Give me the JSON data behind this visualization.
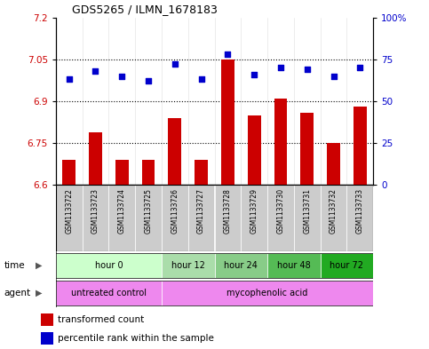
{
  "title": "GDS5265 / ILMN_1678183",
  "samples": [
    "GSM1133722",
    "GSM1133723",
    "GSM1133724",
    "GSM1133725",
    "GSM1133726",
    "GSM1133727",
    "GSM1133728",
    "GSM1133729",
    "GSM1133730",
    "GSM1133731",
    "GSM1133732",
    "GSM1133733"
  ],
  "transformed_count": [
    6.69,
    6.79,
    6.69,
    6.69,
    6.84,
    6.69,
    7.05,
    6.85,
    6.91,
    6.86,
    6.75,
    6.88
  ],
  "percentile_rank": [
    63,
    68,
    65,
    62,
    72,
    63,
    78,
    66,
    70,
    69,
    65,
    70
  ],
  "ylim_left": [
    6.6,
    7.2
  ],
  "ylim_right": [
    0,
    100
  ],
  "yticks_left": [
    6.6,
    6.75,
    6.9,
    7.05,
    7.2
  ],
  "yticks_right": [
    0,
    25,
    50,
    75,
    100
  ],
  "hlines": [
    6.75,
    6.9,
    7.05
  ],
  "bar_color": "#cc0000",
  "dot_color": "#0000cc",
  "bar_bottom": 6.6,
  "time_colors": [
    "#ccffcc",
    "#aaddaa",
    "#88cc88",
    "#55bb55",
    "#22aa22"
  ],
  "time_labels": [
    "hour 0",
    "hour 12",
    "hour 24",
    "hour 48",
    "hour 72"
  ],
  "time_starts": [
    0,
    4,
    6,
    8,
    10
  ],
  "time_ends": [
    3,
    5,
    7,
    9,
    11
  ],
  "agent_labels": [
    "untreated control",
    "mycophenolic acid"
  ],
  "agent_starts": [
    0,
    4
  ],
  "agent_ends": [
    3,
    11
  ],
  "agent_color": "#ee88ee",
  "sample_bg": "#cccccc",
  "legend_colors": [
    "#cc0000",
    "#0000cc"
  ],
  "legend_labels": [
    "transformed count",
    "percentile rank within the sample"
  ]
}
